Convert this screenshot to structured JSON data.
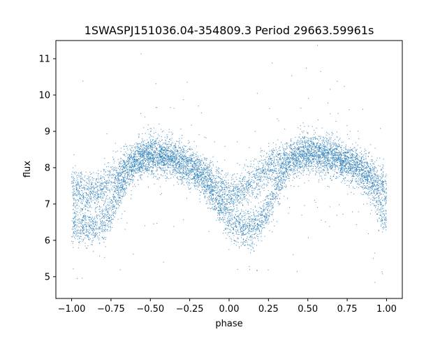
{
  "chart_data": {
    "type": "scatter",
    "title": "1SWASPJ151036.04-354809.3 Period 29663.59961s",
    "xlabel": "phase",
    "ylabel": "flux",
    "xlim": [
      -1.1,
      1.1
    ],
    "ylim": [
      4.4,
      11.5
    ],
    "x_ticks": [
      -1.0,
      -0.75,
      -0.5,
      -0.25,
      0.0,
      0.25,
      0.5,
      0.75,
      1.0
    ],
    "x_tick_labels": [
      "−1.00",
      "−0.75",
      "−0.50",
      "−0.25",
      "0.00",
      "0.25",
      "0.50",
      "0.75",
      "1.00"
    ],
    "y_ticks": [
      5,
      6,
      7,
      8,
      9,
      10,
      11
    ],
    "y_tick_labels": [
      "5",
      "6",
      "7",
      "8",
      "9",
      "10",
      "11"
    ],
    "grid": false,
    "legend": "none",
    "marker_color": "#1f77b4",
    "series": [
      {
        "phase": [
          -1.0,
          -0.95,
          -0.9,
          -0.85,
          -0.8,
          -0.75,
          -0.7,
          -0.65,
          -0.6,
          -0.55,
          -0.5,
          -0.45,
          -0.4,
          -0.35,
          -0.3,
          -0.25,
          -0.2,
          -0.15,
          -0.1,
          -0.05,
          0.0,
          0.05,
          0.1,
          0.15,
          0.2,
          0.25,
          0.3,
          0.35,
          0.4,
          0.45,
          0.5,
          0.55,
          0.6,
          0.65,
          0.7,
          0.75,
          0.8,
          0.85,
          0.9,
          0.95,
          1.0
        ],
        "upper_branch_flux": [
          7.45,
          7.4,
          7.3,
          7.35,
          7.45,
          7.65,
          7.9,
          8.1,
          8.25,
          8.3,
          8.35,
          8.35,
          8.3,
          8.25,
          8.15,
          8.05,
          7.95,
          7.8,
          7.6,
          7.4,
          7.25,
          7.3,
          7.45,
          7.65,
          7.85,
          8.0,
          8.1,
          8.2,
          8.3,
          8.35,
          8.4,
          8.4,
          8.35,
          8.3,
          8.25,
          8.15,
          8.05,
          7.95,
          7.8,
          7.6,
          7.45
        ],
        "lower_branch_flux": [
          6.5,
          6.4,
          6.35,
          6.35,
          6.5,
          6.85,
          7.3,
          7.75,
          8.1,
          8.3,
          8.35,
          8.35,
          8.3,
          8.25,
          8.15,
          8.0,
          7.85,
          7.6,
          7.25,
          6.9,
          6.6,
          6.4,
          6.35,
          6.35,
          6.5,
          6.9,
          7.4,
          7.85,
          8.15,
          8.3,
          8.4,
          8.4,
          8.35,
          8.3,
          8.25,
          8.15,
          8.0,
          7.8,
          7.5,
          7.0,
          6.5
        ]
      }
    ]
  }
}
